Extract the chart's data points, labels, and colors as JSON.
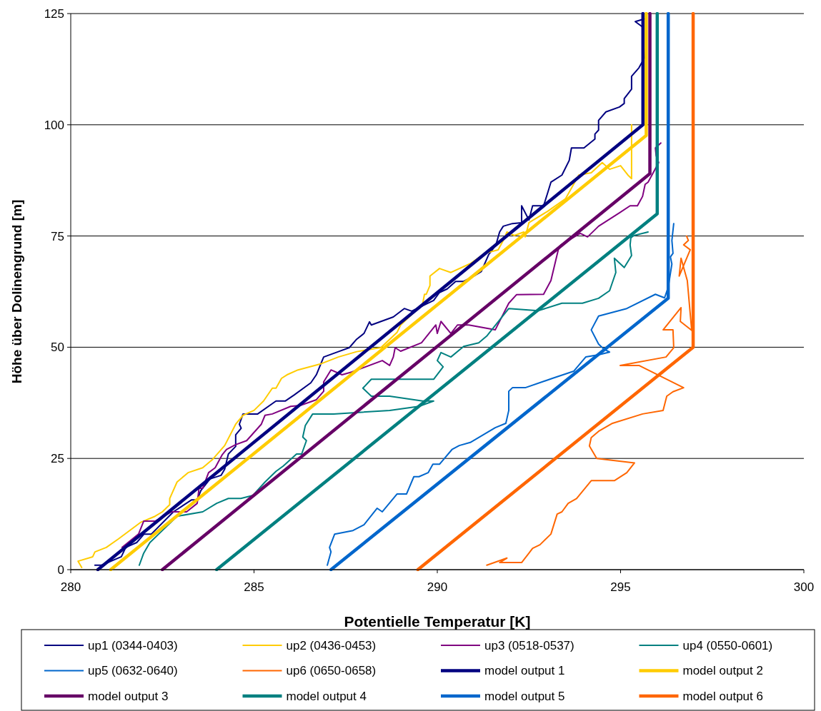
{
  "chart_data": {
    "type": "line",
    "xlabel": "Potentielle Temperatur [K]",
    "ylabel": "Höhe über Dolinengrund [m]",
    "xlim": [
      280,
      300
    ],
    "xticks": [
      280,
      285,
      290,
      295,
      300
    ],
    "ylim": [
      0,
      125
    ],
    "yticks": [
      0,
      25,
      50,
      75,
      100,
      125
    ],
    "grid": "y",
    "legend": "bottom",
    "line_style": "solid",
    "marker": "none",
    "series": [
      {
        "name": "up1 (0344-0403)",
        "color": "#000080",
        "x": [
          280.66,
          280.84,
          281.38,
          281.5,
          281.8,
          282.0,
          282.2,
          282.8,
          283.3,
          283.45,
          283.55,
          283.8,
          284.1,
          284.2,
          284.3,
          284.5,
          284.5,
          284.65,
          284.6,
          284.7,
          285.1,
          285.6,
          285.85,
          286.1,
          286.55,
          286.7,
          286.9,
          287.3,
          287.6,
          287.8,
          288.0,
          288.15,
          288.2,
          288.8,
          289.1,
          289.3,
          289.75,
          289.9,
          290.06,
          290.27,
          290.5,
          290.72,
          291.0,
          291.2,
          291.4,
          291.6,
          291.7,
          291.8,
          292.05,
          292.3,
          292.3,
          292.5,
          292.6,
          292.9,
          293.0,
          293.1,
          293.4,
          293.6,
          293.66,
          294.0,
          294.3,
          294.3,
          294.4,
          294.4,
          294.6,
          294.97,
          295.1,
          295.1,
          295.3,
          295.3,
          295.5,
          295.65,
          295.6,
          295.4,
          295.65
        ],
        "values": [
          1,
          1,
          2.9,
          5,
          6.1,
          8,
          8,
          13,
          15.7,
          15.7,
          17.8,
          20.4,
          21.2,
          22.6,
          26,
          27.7,
          30.3,
          31.8,
          32.7,
          35,
          35,
          37.9,
          37.9,
          39.3,
          42,
          43.8,
          47.8,
          49,
          49.9,
          51.8,
          53.1,
          55.7,
          55,
          56.8,
          58.7,
          58.1,
          59.9,
          60.5,
          62.3,
          63.1,
          64.8,
          64.8,
          66,
          67,
          70.8,
          73,
          75.9,
          77.2,
          77.8,
          78,
          81.8,
          78.6,
          81.8,
          81.8,
          84.4,
          87.1,
          88.7,
          92,
          94.8,
          94.8,
          96.8,
          97.9,
          98.8,
          101,
          102.9,
          104,
          104.8,
          105.9,
          108,
          110.9,
          112.8,
          115,
          122,
          123.2,
          123.8
        ]
      },
      {
        "name": "up2 (0436-0453)",
        "color": "#ffcc00",
        "x": [
          280.3,
          280.2,
          280.6,
          280.66,
          280.97,
          281.3,
          281.9,
          282.3,
          282.5,
          282.7,
          282.7,
          282.9,
          283.2,
          283.6,
          283.86,
          284.2,
          284.5,
          284.7,
          285.0,
          285.26,
          285.5,
          285.6,
          285.75,
          285.9,
          286.2,
          286.8,
          287.3,
          287.8,
          288.3,
          288.46,
          288.9,
          289.0,
          289.6,
          289.65,
          289.7,
          289.8,
          289.8,
          290.06,
          290.37,
          290.9,
          291.3,
          291.66,
          291.8,
          291.9,
          292.1,
          292.36,
          292.4,
          292.5,
          293.0,
          293.5,
          293.86,
          294.2,
          294.5,
          294.7,
          295.0,
          295.2,
          295.3,
          295.3,
          295.3
        ],
        "values": [
          0.5,
          1.9,
          2.9,
          4,
          5,
          6.9,
          10.6,
          12,
          13,
          14.6,
          16,
          19.7,
          21.8,
          22.9,
          24.7,
          27.9,
          32.7,
          34.7,
          35.8,
          37.9,
          40.8,
          40.8,
          43,
          43.8,
          44.9,
          46.2,
          47.8,
          49,
          49.7,
          49.9,
          53.3,
          55,
          59.7,
          61.9,
          61.9,
          63.9,
          66,
          67.7,
          66.8,
          68.8,
          71.1,
          71.9,
          74,
          75.9,
          75.1,
          75.9,
          74.8,
          78,
          80.5,
          83.4,
          88.7,
          89.2,
          91.5,
          90,
          90.8,
          88.7,
          87.9,
          91.9,
          100
        ]
      },
      {
        "name": "up3 (0518-0537)",
        "color": "#800080",
        "x": [
          281.4,
          281.85,
          281.99,
          282.3,
          282.75,
          283.16,
          283.45,
          283.5,
          283.6,
          283.76,
          283.94,
          284.13,
          284.25,
          284.5,
          284.8,
          285.2,
          285.3,
          285.5,
          286.0,
          286.26,
          286.7,
          286.9,
          286.9,
          287.1,
          287.4,
          287.66,
          288.5,
          288.7,
          288.8,
          288.85,
          289.0,
          289.57,
          289.96,
          290.0,
          290.1,
          290.37,
          290.55,
          290.86,
          291.58,
          291.95,
          292.16,
          292.9,
          293.1,
          293.3,
          293.37,
          293.9,
          294.1,
          294.4,
          294.97,
          295.26,
          295.46,
          295.6,
          295.67,
          295.75,
          296.04,
          295.97,
          295.95,
          296.1
        ],
        "values": [
          5,
          8,
          10.9,
          10.9,
          13,
          13,
          14.9,
          18.3,
          18.3,
          21.8,
          22.9,
          25.8,
          27,
          28.1,
          29,
          32.7,
          34.7,
          35,
          36.7,
          36.9,
          38.2,
          40.1,
          42.2,
          44.9,
          43.8,
          44.4,
          47,
          45.9,
          47.8,
          49.9,
          49.1,
          51,
          55,
          53.1,
          55.8,
          53.1,
          55,
          55,
          53.9,
          59.9,
          61.8,
          61.9,
          65,
          71.9,
          73,
          75.6,
          74.8,
          77.2,
          80.2,
          81.8,
          81.8,
          83.9,
          86.6,
          87.1,
          91.5,
          93.1,
          94.8,
          95.9
        ]
      },
      {
        "name": "up4 (0550-0601)",
        "color": "#008080",
        "x": [
          281.87,
          281.99,
          282.16,
          282.4,
          282.9,
          283.6,
          283.98,
          284.3,
          284.64,
          284.97,
          285.3,
          285.6,
          285.8,
          286.16,
          286.3,
          286.43,
          286.33,
          286.4,
          286.6,
          287.17,
          288.7,
          289.5,
          289.9,
          289.6,
          288.7,
          288.2,
          287.97,
          288.2,
          289.9,
          290.16,
          290.0,
          290.1,
          290.37,
          290.72,
          291.13,
          291.36,
          291.95,
          292.75,
          293.4,
          293.96,
          294.4,
          294.7,
          294.87,
          294.83,
          295.1,
          295.3,
          295.26,
          295.28,
          295.36,
          295.75
        ],
        "values": [
          1,
          3.7,
          6.1,
          8,
          12,
          13,
          14.9,
          16,
          16,
          16.7,
          19.7,
          22.1,
          23.3,
          26,
          26,
          29,
          29.8,
          32.4,
          35,
          35,
          35.8,
          36.7,
          37.9,
          37.9,
          39,
          39,
          40.8,
          42.8,
          42.8,
          45.6,
          47,
          48.8,
          47.8,
          50.2,
          51,
          52.6,
          58.7,
          58.2,
          59.9,
          59.9,
          61,
          62.7,
          66.8,
          70,
          67.9,
          70.6,
          73,
          74.6,
          75.1,
          75.9
        ]
      },
      {
        "name": "up5 (0632-0640)",
        "color": "#0066cc",
        "x": [
          287.0,
          287.1,
          287.06,
          287.2,
          287.7,
          288.0,
          288.36,
          288.5,
          288.9,
          289.16,
          289.36,
          289.5,
          289.75,
          289.88,
          290.06,
          290.4,
          290.6,
          290.9,
          291.58,
          291.87,
          291.95,
          291.95,
          292.05,
          292.4,
          293.14,
          293.72,
          294.05,
          294.4,
          294.7,
          294.54,
          294.4,
          294.2,
          294.4,
          295.17,
          295.95,
          296.2,
          296.3,
          296.4,
          296.36,
          296.43,
          296.4,
          296.45
        ],
        "values": [
          1,
          4,
          5,
          8,
          8.8,
          10.1,
          13.8,
          13,
          17,
          17,
          20.9,
          20.9,
          21.8,
          23.7,
          23.7,
          27,
          27.9,
          28.6,
          31.9,
          32.9,
          35.8,
          40.1,
          40.9,
          40.9,
          43,
          44.6,
          47.8,
          48.3,
          48.9,
          49.6,
          50.7,
          53.9,
          57,
          58.7,
          61.9,
          61.1,
          63.5,
          68.7,
          70.3,
          71.1,
          74,
          77.8
        ]
      },
      {
        "name": "up6 (0650-0658)",
        "color": "#ff6600",
        "x": [
          291.35,
          291.9,
          291.7,
          292.3,
          292.5,
          292.6,
          292.8,
          293.1,
          293.27,
          293.4,
          293.57,
          293.8,
          294.2,
          294.83,
          295.17,
          295.38,
          294.35,
          294.15,
          294.2,
          294.4,
          294.78,
          295.6,
          296.16,
          296.26,
          296.43,
          296.72,
          295.5,
          294.99,
          296.24,
          296.45,
          296.43,
          296.16,
          296.65,
          296.63,
          296.94,
          296.82,
          296.65,
          296.6,
          296.9,
          296.72,
          296.85,
          296.8
        ],
        "values": [
          1,
          2.6,
          1.6,
          1.6,
          3.7,
          4.8,
          5.6,
          8,
          12.5,
          13,
          14.9,
          16,
          20,
          20,
          21.8,
          24,
          25,
          27.8,
          29.7,
          31.1,
          32.9,
          35,
          35.8,
          39,
          40,
          40.9,
          45.9,
          45.9,
          47.8,
          49.9,
          53.9,
          53.9,
          58.9,
          55.8,
          53.8,
          65,
          70,
          66,
          71.9,
          73,
          74,
          75
        ]
      },
      {
        "name": "model output 1",
        "color": "#000080",
        "x": [
          280.74,
          295.61,
          295.61
        ],
        "values": [
          0,
          100,
          125
        ]
      },
      {
        "name": "model output 2",
        "color": "#ffcc00",
        "x": [
          281.09,
          295.7,
          295.7
        ],
        "values": [
          0,
          97.6,
          125
        ]
      },
      {
        "name": "model output 3",
        "color": "#660066",
        "x": [
          282.5,
          295.8,
          295.8
        ],
        "values": [
          0,
          89,
          125
        ]
      },
      {
        "name": "model output 4",
        "color": "#008080",
        "x": [
          283.98,
          296.0,
          296.0
        ],
        "values": [
          0,
          80,
          125
        ]
      },
      {
        "name": "model output 5",
        "color": "#0066cc",
        "x": [
          287.1,
          296.3,
          296.3
        ],
        "values": [
          0,
          61,
          125
        ]
      },
      {
        "name": "model output 6",
        "color": "#ff6600",
        "x": [
          289.47,
          296.98,
          296.98
        ],
        "values": [
          0,
          50,
          125
        ]
      }
    ]
  }
}
